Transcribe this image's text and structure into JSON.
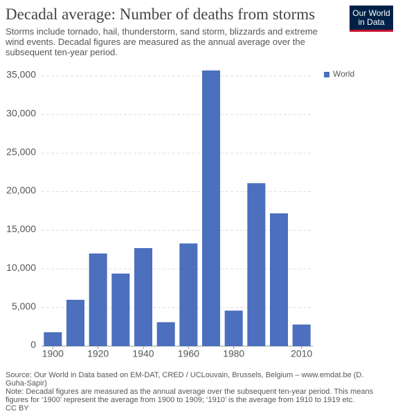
{
  "chart_data": {
    "type": "bar",
    "title": "Decadal average: Number of deaths from storms",
    "subtitle": "Storms include tornado, hail, thunderstorm, sand storm, blizzards and extreme wind events. Decadal figures are measured as the annual average over the subsequent ten-year period.",
    "categories": [
      "1900",
      null,
      "1920",
      null,
      "1940",
      null,
      "1960",
      null,
      "1980",
      null,
      null,
      "2010"
    ],
    "series": [
      {
        "name": "World",
        "color": "#4c6fbe",
        "values": [
          1800,
          6000,
          12000,
          9400,
          12700,
          3100,
          13300,
          35700,
          4600,
          21100,
          17200,
          2800
        ]
      }
    ],
    "ylim": [
      0,
      35700
    ],
    "yticks": [
      0,
      {
        "value": 5000,
        "label": "5,000"
      },
      {
        "value": 10000,
        "label": "10,000"
      },
      {
        "value": 15000,
        "label": "15,000"
      },
      {
        "value": 20000,
        "label": "20,000"
      },
      {
        "value": 25000,
        "label": "25,000"
      },
      {
        "value": 30000,
        "label": "30,000"
      },
      {
        "value": 35000,
        "label": "35,000"
      }
    ],
    "grid": true,
    "legend": "right"
  },
  "logo": [
    "Our World",
    "in Data"
  ],
  "source": "Source: Our World in Data based on EM-DAT, CRED / UCLouvain, Brussels, Belgium – www.emdat.be (D. Guha-Sapir)",
  "note": "Note: Decadal figures are measured as the annual average over the subsequent ten-year period. This means figures for ‘1900’ represent the average from 1900 to 1909; ‘1910’ is the average from 1910 to 1919 etc.",
  "license": "CC BY"
}
